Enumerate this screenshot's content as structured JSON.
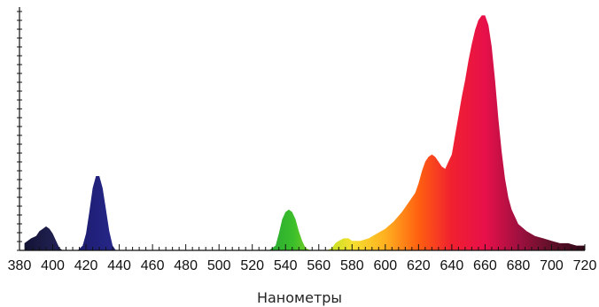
{
  "chart_data": {
    "type": "area",
    "xlabel": "Наномeтры",
    "ylabel": "",
    "title": "",
    "xlim": [
      380,
      720
    ],
    "ylim": [
      0,
      1
    ],
    "x_ticks": [
      380,
      400,
      420,
      440,
      460,
      480,
      500,
      520,
      540,
      560,
      580,
      600,
      620,
      640,
      660,
      680,
      700,
      720
    ],
    "x_tick_labels": [
      "380",
      "400",
      "420",
      "440",
      "460",
      "480",
      "500",
      "520",
      "540",
      "560",
      "580",
      "600",
      "620",
      "640",
      "660",
      "680",
      "700",
      "720"
    ],
    "y_tick_labels": [],
    "grid": false,
    "legend": "none",
    "colors": {
      "background": "#ffffff",
      "axis": "#111111"
    },
    "series": [
      {
        "x": [
          383,
          387,
          390,
          392,
          394,
          396,
          398,
          400,
          402,
          404,
          406,
          408,
          410,
          412,
          415,
          418,
          420,
          422,
          424,
          426,
          428,
          430,
          432,
          434,
          436,
          438,
          440,
          445,
          450,
          460,
          480,
          500,
          520,
          530,
          534,
          536,
          538,
          540,
          542,
          544,
          546,
          548,
          550,
          552,
          555,
          560,
          565,
          568,
          570,
          572,
          575,
          578,
          580,
          585,
          590,
          595,
          600,
          605,
          610,
          615,
          618,
          620,
          622,
          624,
          626,
          628,
          630,
          632,
          634,
          636,
          638,
          640,
          642,
          644,
          646,
          648,
          650,
          652,
          654,
          656,
          658,
          660,
          662,
          664,
          666,
          668,
          670,
          672,
          674,
          676,
          678,
          680,
          685,
          690,
          695,
          700,
          705,
          710,
          715,
          720
        ],
        "values": [
          0.03,
          0.05,
          0.06,
          0.08,
          0.09,
          0.1,
          0.09,
          0.07,
          0.04,
          0.01,
          0.0,
          0.0,
          0.0,
          0.0,
          0.0,
          0.02,
          0.07,
          0.16,
          0.26,
          0.31,
          0.31,
          0.26,
          0.17,
          0.08,
          0.02,
          0.0,
          0.0,
          0.0,
          0.0,
          0.0,
          0.0,
          0.0,
          0.0,
          0.0,
          0.02,
          0.07,
          0.13,
          0.16,
          0.17,
          0.16,
          0.13,
          0.08,
          0.04,
          0.01,
          0.0,
          0.0,
          0.0,
          0.01,
          0.03,
          0.04,
          0.05,
          0.05,
          0.04,
          0.04,
          0.05,
          0.07,
          0.09,
          0.12,
          0.16,
          0.21,
          0.24,
          0.28,
          0.33,
          0.37,
          0.39,
          0.4,
          0.39,
          0.37,
          0.35,
          0.34,
          0.37,
          0.4,
          0.48,
          0.56,
          0.64,
          0.71,
          0.79,
          0.86,
          0.92,
          0.96,
          0.98,
          0.98,
          0.94,
          0.85,
          0.71,
          0.55,
          0.41,
          0.3,
          0.22,
          0.17,
          0.14,
          0.11,
          0.08,
          0.06,
          0.05,
          0.04,
          0.03,
          0.03,
          0.02,
          0.02
        ]
      }
    ]
  }
}
